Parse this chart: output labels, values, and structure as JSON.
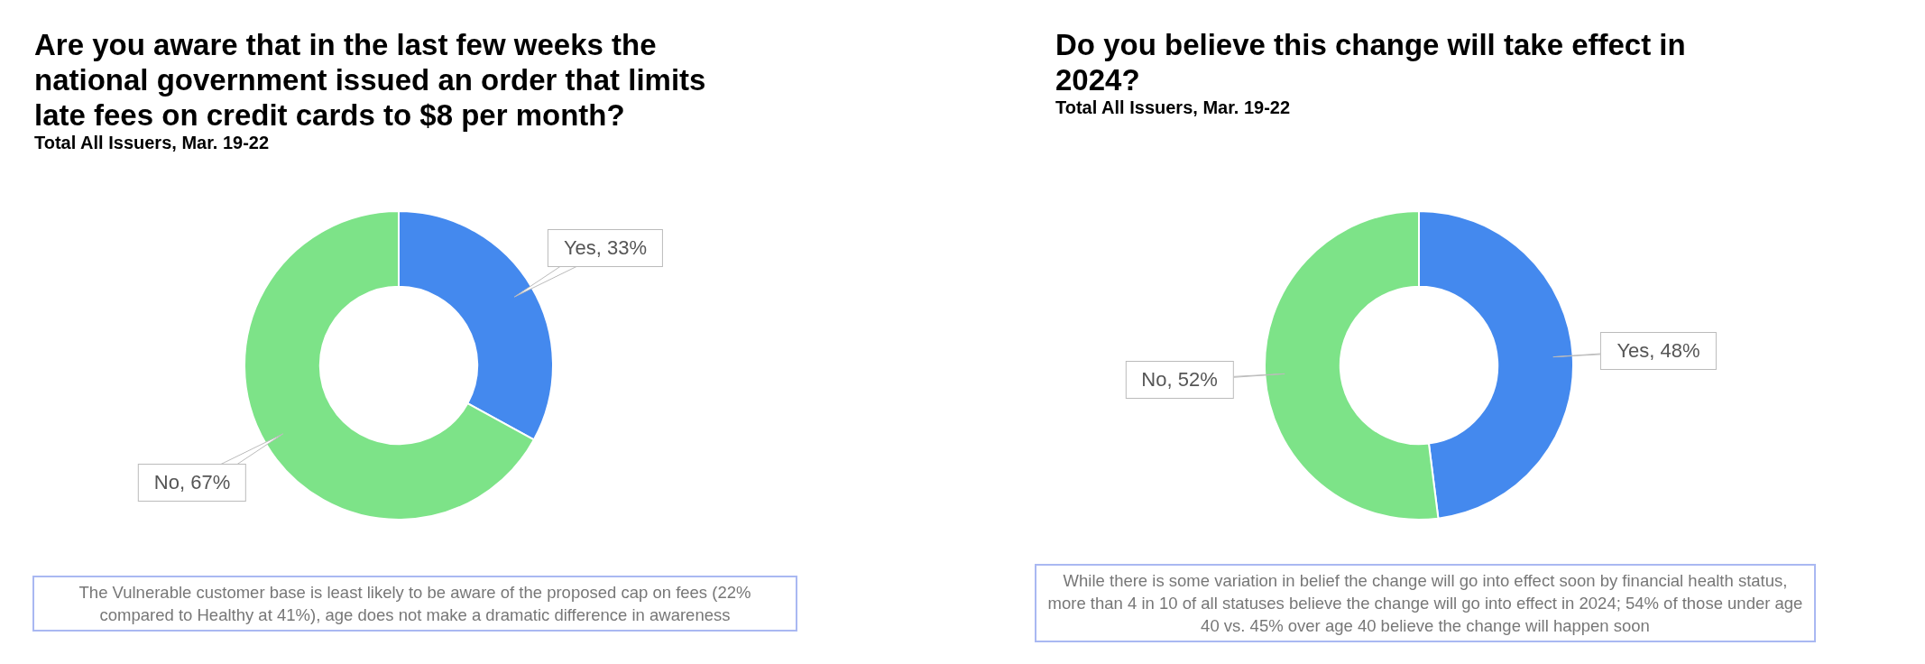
{
  "chart_data": [
    {
      "type": "donut",
      "title": "Are you aware that in the last few weeks the national government issued an order that limits late fees on credit cards to $8 per month?",
      "subtitle": "Total All Issuers, Mar. 19-22",
      "categories": [
        "Yes",
        "No"
      ],
      "values": [
        33,
        67
      ],
      "colors": [
        "#4489ee",
        "#7de388"
      ],
      "value_labels": [
        "33%",
        "67%"
      ],
      "annotations": [
        "The Vulnerable customer base is least likely to be aware of the proposed cap on fees (22% compared to Healthy at 41%), age does not make a dramatic difference in awareness"
      ]
    },
    {
      "type": "donut",
      "title": "Do you believe this change will take effect in 2024?",
      "subtitle": "Total All Issuers, Mar. 19-22",
      "categories": [
        "Yes",
        "No"
      ],
      "values": [
        48,
        52
      ],
      "colors": [
        "#4489ee",
        "#7de388"
      ],
      "value_labels": [
        "48%",
        "52%"
      ],
      "annotations": [
        "While there is some variation in belief the change will go into effect soon by financial health status, more than 4 in 10 of all statuses believe the change will go into effect in 2024; 54% of those under age 40 vs. 45% over age 40 believe the change will happen soon"
      ]
    }
  ]
}
